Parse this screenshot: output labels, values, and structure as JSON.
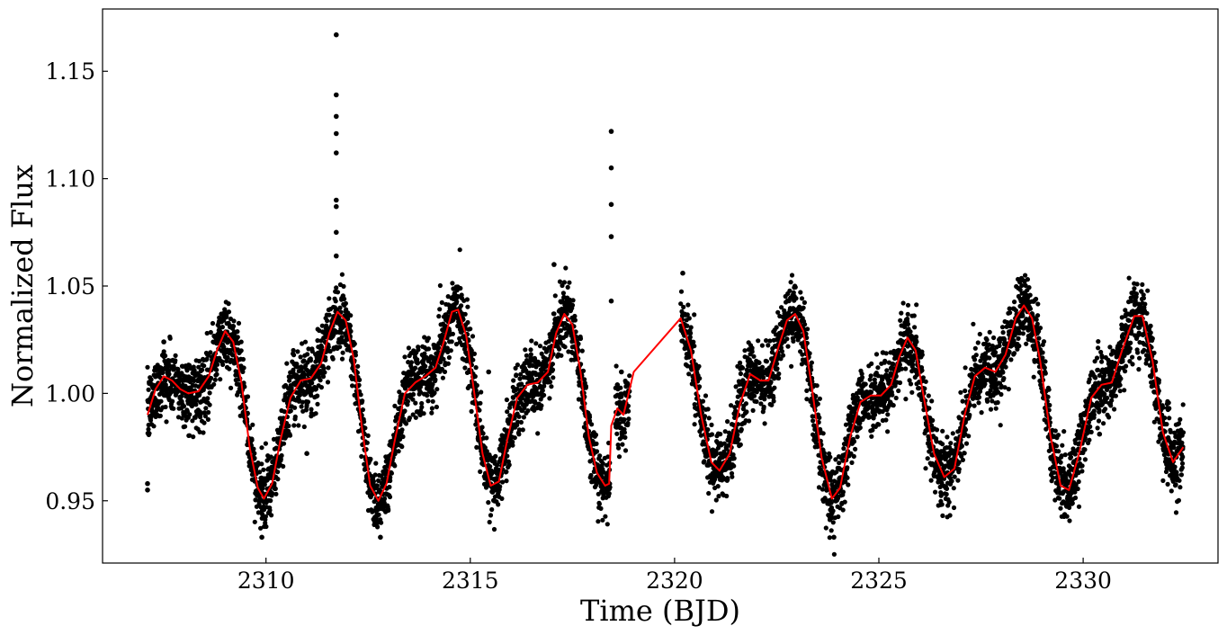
{
  "chart_data": {
    "type": "scatter",
    "title": "",
    "xlabel": "Time (BJD)",
    "ylabel": "Normalized Flux",
    "xlim": [
      2306.0,
      2333.3
    ],
    "ylim": [
      0.921,
      1.179
    ],
    "xticks": [
      {
        "value": 2310,
        "label": "2310"
      },
      {
        "value": 2315,
        "label": "2315"
      },
      {
        "value": 2320,
        "label": "2320"
      },
      {
        "value": 2325,
        "label": "2325"
      },
      {
        "value": 2330,
        "label": "2330"
      }
    ],
    "yticks": [
      {
        "value": 0.95,
        "label": "0.95"
      },
      {
        "value": 1.0,
        "label": "1.00"
      },
      {
        "value": 1.05,
        "label": "1.05"
      },
      {
        "value": 1.1,
        "label": "1.10"
      },
      {
        "value": 1.15,
        "label": "1.15"
      }
    ],
    "grid": false,
    "legend": "none",
    "series": [
      {
        "kind": "scatter",
        "color": "#000000",
        "segments": [
          [
            2307.1,
            2318.42
          ],
          [
            2318.55,
            2318.9
          ],
          [
            2320.15,
            2332.45
          ]
        ],
        "scatter_width": 0.008,
        "outliers": [
          {
            "x": 2311.72,
            "y": 1.167
          },
          {
            "x": 2311.72,
            "y": 1.139
          },
          {
            "x": 2311.72,
            "y": 1.129
          },
          {
            "x": 2311.72,
            "y": 1.121
          },
          {
            "x": 2311.72,
            "y": 1.112
          },
          {
            "x": 2311.72,
            "y": 1.09
          },
          {
            "x": 2311.72,
            "y": 1.087
          },
          {
            "x": 2311.72,
            "y": 1.075
          },
          {
            "x": 2311.72,
            "y": 1.064
          },
          {
            "x": 2318.45,
            "y": 1.122
          },
          {
            "x": 2318.45,
            "y": 1.105
          },
          {
            "x": 2318.45,
            "y": 1.088
          },
          {
            "x": 2318.45,
            "y": 1.073
          },
          {
            "x": 2318.45,
            "y": 1.043
          },
          {
            "x": 2317.05,
            "y": 1.06
          },
          {
            "x": 2315.45,
            "y": 1.01
          },
          {
            "x": 2320.2,
            "y": 1.056
          },
          {
            "x": 2325.1,
            "y": 1.019
          },
          {
            "x": 2307.5,
            "y": 1.024
          },
          {
            "x": 2311.0,
            "y": 0.972
          },
          {
            "x": 2330.4,
            "y": 0.981
          },
          {
            "x": 2309.9,
            "y": 0.933
          },
          {
            "x": 2312.8,
            "y": 0.933
          },
          {
            "x": 2323.9,
            "y": 0.933
          },
          {
            "x": 2307.1,
            "y": 0.955
          },
          {
            "x": 2307.1,
            "y": 0.958
          },
          {
            "x": 2332.1,
            "y": 0.993
          },
          {
            "x": 2318.6,
            "y": 1.004
          },
          {
            "x": 2318.7,
            "y": 1.01
          }
        ]
      },
      {
        "kind": "line",
        "color": "#ff0000",
        "points": [
          [
            2307.1,
            0.99
          ],
          [
            2307.3,
            1.002
          ],
          [
            2307.5,
            1.008
          ],
          [
            2307.7,
            1.006
          ],
          [
            2307.9,
            1.002
          ],
          [
            2308.1,
            1.0
          ],
          [
            2308.35,
            1.001
          ],
          [
            2308.6,
            1.008
          ],
          [
            2308.8,
            1.02
          ],
          [
            2309.0,
            1.029
          ],
          [
            2309.2,
            1.024
          ],
          [
            2309.4,
            1.005
          ],
          [
            2309.6,
            0.975
          ],
          [
            2309.8,
            0.956
          ],
          [
            2309.95,
            0.951
          ],
          [
            2310.15,
            0.958
          ],
          [
            2310.35,
            0.978
          ],
          [
            2310.6,
            0.998
          ],
          [
            2310.85,
            1.006
          ],
          [
            2311.1,
            1.007
          ],
          [
            2311.35,
            1.014
          ],
          [
            2311.55,
            1.028
          ],
          [
            2311.75,
            1.038
          ],
          [
            2311.95,
            1.034
          ],
          [
            2312.15,
            1.016
          ],
          [
            2312.35,
            0.984
          ],
          [
            2312.55,
            0.957
          ],
          [
            2312.75,
            0.95
          ],
          [
            2312.95,
            0.958
          ],
          [
            2313.15,
            0.978
          ],
          [
            2313.4,
            1.0
          ],
          [
            2313.65,
            1.005
          ],
          [
            2313.9,
            1.008
          ],
          [
            2314.15,
            1.012
          ],
          [
            2314.35,
            1.024
          ],
          [
            2314.55,
            1.038
          ],
          [
            2314.7,
            1.039
          ],
          [
            2314.9,
            1.027
          ],
          [
            2315.1,
            1.0
          ],
          [
            2315.3,
            0.972
          ],
          [
            2315.5,
            0.957
          ],
          [
            2315.7,
            0.959
          ],
          [
            2315.9,
            0.978
          ],
          [
            2316.15,
            0.998
          ],
          [
            2316.4,
            1.004
          ],
          [
            2316.65,
            1.005
          ],
          [
            2316.9,
            1.01
          ],
          [
            2317.1,
            1.028
          ],
          [
            2317.3,
            1.037
          ],
          [
            2317.5,
            1.032
          ],
          [
            2317.7,
            1.01
          ],
          [
            2317.9,
            0.98
          ],
          [
            2318.1,
            0.963
          ],
          [
            2318.3,
            0.957
          ],
          [
            2318.4,
            0.958
          ],
          [
            2318.45,
            0.985
          ],
          [
            2318.6,
            0.993
          ],
          [
            2318.75,
            0.99
          ],
          [
            2318.9,
            1.002
          ],
          [
            2319.0,
            1.01
          ],
          [
            2320.15,
            1.035
          ],
          [
            2320.4,
            1.02
          ],
          [
            2320.65,
            0.99
          ],
          [
            2320.9,
            0.968
          ],
          [
            2321.1,
            0.964
          ],
          [
            2321.35,
            0.972
          ],
          [
            2321.6,
            0.995
          ],
          [
            2321.85,
            1.009
          ],
          [
            2322.1,
            1.006
          ],
          [
            2322.3,
            1.006
          ],
          [
            2322.55,
            1.022
          ],
          [
            2322.75,
            1.034
          ],
          [
            2322.95,
            1.037
          ],
          [
            2323.15,
            1.029
          ],
          [
            2323.35,
            1.004
          ],
          [
            2323.6,
            0.97
          ],
          [
            2323.85,
            0.951
          ],
          [
            2324.05,
            0.956
          ],
          [
            2324.3,
            0.98
          ],
          [
            2324.55,
            0.996
          ],
          [
            2324.8,
            0.999
          ],
          [
            2325.05,
            0.999
          ],
          [
            2325.3,
            1.004
          ],
          [
            2325.5,
            1.017
          ],
          [
            2325.7,
            1.026
          ],
          [
            2325.9,
            1.02
          ],
          [
            2326.1,
            0.998
          ],
          [
            2326.35,
            0.972
          ],
          [
            2326.6,
            0.961
          ],
          [
            2326.85,
            0.965
          ],
          [
            2327.1,
            0.99
          ],
          [
            2327.35,
            1.008
          ],
          [
            2327.6,
            1.012
          ],
          [
            2327.85,
            1.01
          ],
          [
            2328.1,
            1.018
          ],
          [
            2328.35,
            1.035
          ],
          [
            2328.55,
            1.041
          ],
          [
            2328.75,
            1.035
          ],
          [
            2328.95,
            1.015
          ],
          [
            2329.2,
            0.98
          ],
          [
            2329.45,
            0.957
          ],
          [
            2329.65,
            0.955
          ],
          [
            2329.9,
            0.972
          ],
          [
            2330.2,
            0.998
          ],
          [
            2330.45,
            1.004
          ],
          [
            2330.7,
            1.005
          ],
          [
            2330.95,
            1.02
          ],
          [
            2331.25,
            1.036
          ],
          [
            2331.45,
            1.036
          ],
          [
            2331.7,
            1.015
          ],
          [
            2331.95,
            0.982
          ],
          [
            2332.2,
            0.968
          ],
          [
            2332.45,
            0.975
          ]
        ]
      }
    ]
  }
}
